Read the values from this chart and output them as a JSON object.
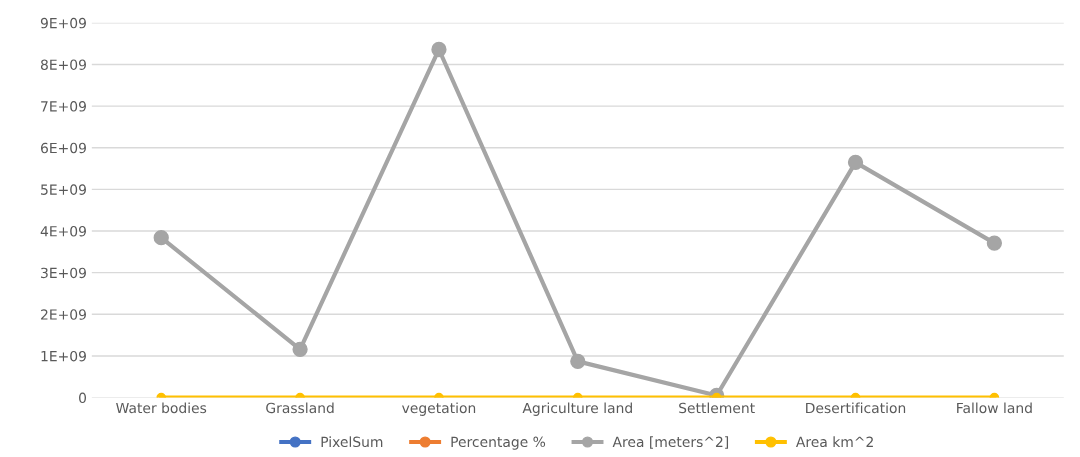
{
  "chart_data": {
    "type": "line",
    "categories": [
      "Water bodies",
      "Grassland",
      "vegetation",
      "Agriculture land",
      "Settlement",
      "Desertification",
      "Fallow land"
    ],
    "series": [
      {
        "name": "PixelSum",
        "color": "#4472c4",
        "values": [
          null,
          null,
          null,
          null,
          null,
          null,
          null
        ]
      },
      {
        "name": "Percentage %",
        "color": "#ed7d31",
        "values": [
          null,
          null,
          null,
          null,
          null,
          null,
          null
        ]
      },
      {
        "name": "Area [meters^2]",
        "color": "#a5a5a5",
        "values": [
          3840000000.0,
          1160000000.0,
          8360000000.0,
          870000000.0,
          50000000.0,
          5650000000.0,
          3710000000.0
        ]
      },
      {
        "name": "Area km^2",
        "color": "#ffc000",
        "values": [
          0,
          0,
          0,
          0,
          0,
          0,
          0
        ]
      }
    ],
    "ylim": [
      0,
      9000000000.0
    ],
    "yticks": [
      0,
      {
        "value": 1000000000.0,
        "label": "1E+09"
      },
      {
        "value": 2000000000.0,
        "label": "2E+09"
      },
      {
        "value": 3000000000.0,
        "label": "3E+09"
      },
      {
        "value": 4000000000.0,
        "label": "4E+09"
      },
      {
        "value": 5000000000.0,
        "label": "5E+09"
      },
      {
        "value": 6000000000.0,
        "label": "6E+09"
      },
      {
        "value": 7000000000.0,
        "label": "7E+09"
      },
      {
        "value": 8000000000.0,
        "label": "8E+09"
      },
      {
        "value": 9000000000.0,
        "label": "9E+09"
      }
    ],
    "grid": "y",
    "legend": "bottom",
    "marker": "circle",
    "line_style": "solid"
  }
}
